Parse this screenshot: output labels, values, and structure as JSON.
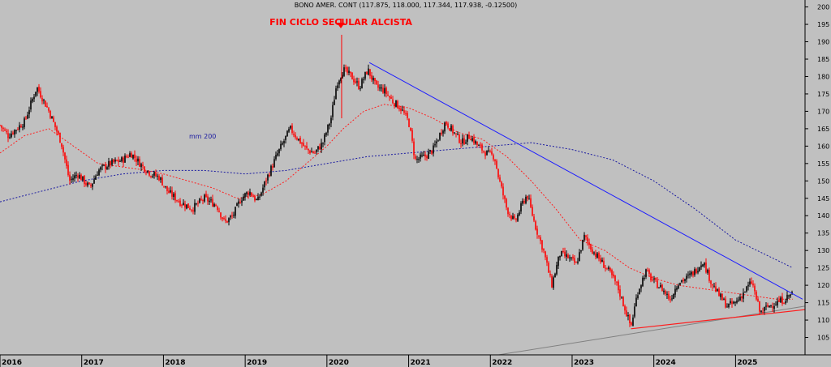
{
  "chart_data": {
    "type": "candlestick",
    "header": "BONO AMER. CONT (117.875, 118.000, 117.344, 117.938, -0.12500)",
    "annotation": "FIN  CICLO SECULAR ALCISTA",
    "ma_label": "mm 200",
    "xlim": [
      2016.0,
      2025.85
    ],
    "ylim": [
      100,
      202
    ],
    "y_ticks": [
      105,
      110,
      115,
      120,
      125,
      130,
      135,
      140,
      145,
      150,
      155,
      160,
      165,
      170,
      175,
      180,
      185,
      190,
      195,
      200
    ],
    "x_ticks": [
      {
        "label": "2016",
        "x": 2016.0
      },
      {
        "label": "2017",
        "x": 2017.0
      },
      {
        "label": "2018",
        "x": 2018.0
      },
      {
        "label": "2019",
        "x": 2019.0
      },
      {
        "label": "2020",
        "x": 2020.0
      },
      {
        "label": "2021",
        "x": 2021.0
      },
      {
        "label": "2022",
        "x": 2022.0
      },
      {
        "label": "2023",
        "x": 2023.0
      },
      {
        "label": "2024",
        "x": 2024.0
      },
      {
        "label": "2025",
        "x": 2025.0
      }
    ],
    "price_path": [
      [
        2016.0,
        166
      ],
      [
        2016.1,
        163
      ],
      [
        2016.2,
        165
      ],
      [
        2016.3,
        167
      ],
      [
        2016.45,
        177
      ],
      [
        2016.6,
        170
      ],
      [
        2016.75,
        161
      ],
      [
        2016.85,
        150
      ],
      [
        2016.95,
        152
      ],
      [
        2017.1,
        148
      ],
      [
        2017.2,
        153
      ],
      [
        2017.35,
        155
      ],
      [
        2017.5,
        156
      ],
      [
        2017.6,
        158
      ],
      [
        2017.75,
        154
      ],
      [
        2017.85,
        152
      ],
      [
        2017.95,
        151
      ],
      [
        2018.05,
        147
      ],
      [
        2018.2,
        144
      ],
      [
        2018.35,
        142
      ],
      [
        2018.5,
        145
      ],
      [
        2018.65,
        143
      ],
      [
        2018.75,
        138
      ],
      [
        2018.85,
        140
      ],
      [
        2018.95,
        145
      ],
      [
        2019.05,
        147
      ],
      [
        2019.15,
        144
      ],
      [
        2019.25,
        150
      ],
      [
        2019.4,
        158
      ],
      [
        2019.55,
        165
      ],
      [
        2019.65,
        162
      ],
      [
        2019.75,
        159
      ],
      [
        2019.85,
        158
      ],
      [
        2019.95,
        161
      ],
      [
        2020.05,
        168
      ],
      [
        2020.12,
        178
      ],
      [
        2020.2,
        182
      ],
      [
        2020.3,
        180
      ],
      [
        2020.4,
        177
      ],
      [
        2020.5,
        182
      ],
      [
        2020.6,
        177
      ],
      [
        2020.7,
        176
      ],
      [
        2020.8,
        173
      ],
      [
        2020.9,
        171
      ],
      [
        2021.0,
        167
      ],
      [
        2021.08,
        156
      ],
      [
        2021.2,
        157
      ],
      [
        2021.3,
        159
      ],
      [
        2021.45,
        167
      ],
      [
        2021.55,
        164
      ],
      [
        2021.65,
        161
      ],
      [
        2021.75,
        163
      ],
      [
        2021.85,
        160
      ],
      [
        2021.95,
        158
      ],
      [
        2022.05,
        157
      ],
      [
        2022.1,
        151
      ],
      [
        2022.2,
        142
      ],
      [
        2022.3,
        138
      ],
      [
        2022.4,
        144
      ],
      [
        2022.45,
        146
      ],
      [
        2022.55,
        137
      ],
      [
        2022.65,
        130
      ],
      [
        2022.75,
        120
      ],
      [
        2022.85,
        129
      ],
      [
        2022.95,
        128
      ],
      [
        2023.05,
        126
      ],
      [
        2023.15,
        134
      ],
      [
        2023.25,
        130
      ],
      [
        2023.35,
        127
      ],
      [
        2023.45,
        124
      ],
      [
        2023.55,
        120
      ],
      [
        2023.65,
        113
      ],
      [
        2023.72,
        108
      ],
      [
        2023.8,
        118
      ],
      [
        2023.9,
        124
      ],
      [
        2024.0,
        121
      ],
      [
        2024.1,
        119
      ],
      [
        2024.2,
        116
      ],
      [
        2024.3,
        121
      ],
      [
        2024.4,
        122
      ],
      [
        2024.5,
        124
      ],
      [
        2024.6,
        127
      ],
      [
        2024.7,
        121
      ],
      [
        2024.8,
        117
      ],
      [
        2024.9,
        114
      ],
      [
        2025.0,
        115
      ],
      [
        2025.1,
        118
      ],
      [
        2025.2,
        121
      ],
      [
        2025.3,
        112
      ],
      [
        2025.4,
        114
      ],
      [
        2025.5,
        115
      ],
      [
        2025.6,
        116
      ],
      [
        2025.7,
        117.9
      ]
    ],
    "ma_fast": [
      [
        2016.0,
        158
      ],
      [
        2016.3,
        163
      ],
      [
        2016.6,
        165
      ],
      [
        2016.9,
        160
      ],
      [
        2017.2,
        155
      ],
      [
        2017.5,
        154
      ],
      [
        2017.8,
        153
      ],
      [
        2018.0,
        152
      ],
      [
        2018.3,
        150
      ],
      [
        2018.6,
        148
      ],
      [
        2018.9,
        145
      ],
      [
        2019.2,
        146
      ],
      [
        2019.5,
        150
      ],
      [
        2019.8,
        156
      ],
      [
        2020.0,
        160
      ],
      [
        2020.2,
        165
      ],
      [
        2020.45,
        170
      ],
      [
        2020.7,
        172
      ],
      [
        2021.0,
        171
      ],
      [
        2021.3,
        168
      ],
      [
        2021.6,
        164
      ],
      [
        2021.9,
        162
      ],
      [
        2022.2,
        157
      ],
      [
        2022.5,
        150
      ],
      [
        2022.8,
        142
      ],
      [
        2023.1,
        133
      ],
      [
        2023.4,
        130
      ],
      [
        2023.7,
        125
      ],
      [
        2024.0,
        122
      ],
      [
        2024.3,
        120
      ],
      [
        2024.6,
        119
      ],
      [
        2024.9,
        118
      ],
      [
        2025.2,
        117
      ],
      [
        2025.5,
        116
      ],
      [
        2025.7,
        116
      ]
    ],
    "ma_200": [
      [
        2016.0,
        144
      ],
      [
        2016.5,
        147
      ],
      [
        2017.0,
        150
      ],
      [
        2017.5,
        152
      ],
      [
        2018.0,
        153
      ],
      [
        2018.5,
        153
      ],
      [
        2019.0,
        152
      ],
      [
        2019.5,
        153
      ],
      [
        2020.0,
        155
      ],
      [
        2020.5,
        157
      ],
      [
        2021.0,
        158
      ],
      [
        2021.5,
        159
      ],
      [
        2022.0,
        160
      ],
      [
        2022.5,
        161
      ],
      [
        2023.0,
        159
      ],
      [
        2023.5,
        156
      ],
      [
        2024.0,
        150
      ],
      [
        2024.5,
        142
      ],
      [
        2025.0,
        133
      ],
      [
        2025.7,
        125
      ]
    ],
    "trendline_resistance": [
      [
        2020.52,
        184
      ],
      [
        2025.82,
        116
      ]
    ],
    "trendline_support": [
      [
        2023.72,
        107.5
      ],
      [
        2025.85,
        113
      ]
    ],
    "trendline_long": [
      [
        2022.1,
        100
      ],
      [
        2025.85,
        114
      ]
    ],
    "marker": {
      "x": 2020.18,
      "y": 192
    },
    "colors": {
      "background": "#c0c0c0",
      "up": "#000000",
      "down": "#ff0000",
      "ma_fast": "#ff2020",
      "ma_200": "#1a1aa0",
      "resistance": "#1c1cff",
      "support": "#ff1c1c",
      "long_line": "#808080",
      "annotation": "#ff0000"
    }
  }
}
